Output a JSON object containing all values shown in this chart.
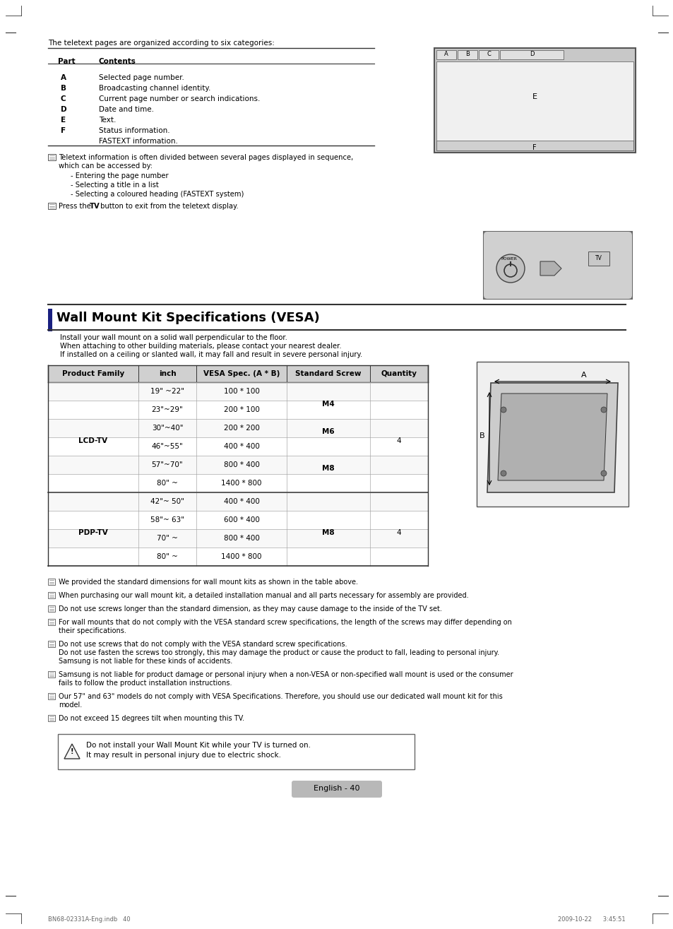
{
  "bg_color": "#ffffff",
  "top_intro_text": "The teletext pages are organized according to six categories:",
  "table1_rows": [
    [
      "A",
      "Selected page number."
    ],
    [
      "B",
      "Broadcasting channel identity."
    ],
    [
      "C",
      "Current page number or search indications."
    ],
    [
      "D",
      "Date and time."
    ],
    [
      "E",
      "Text."
    ],
    [
      "F",
      "Status information."
    ],
    [
      "",
      "FASTEXT information."
    ]
  ],
  "note1_line1": "Teletext information is often divided between several pages displayed in sequence,",
  "note1_line2": "which can be accessed by:",
  "note1_bullets": [
    "Entering the page number",
    "Selecting a title in a list",
    "Selecting a coloured heading (FASTEXT system)"
  ],
  "section_title": "Wall Mount Kit Specifications (VESA)",
  "section_intro": [
    "Install your wall mount on a solid wall perpendicular to the floor.",
    "When attaching to other building materials, please contact your nearest dealer.",
    "If installed on a ceiling or slanted wall, it may fall and result in severe personal injury."
  ],
  "vesa_table_headers": [
    "Product Family",
    "inch",
    "VESA Spec. (A * B)",
    "Standard Screw",
    "Quantity"
  ],
  "vesa_rows": [
    [
      "19\" ~22\"",
      "100 * 100"
    ],
    [
      "23\"~29\"",
      "200 * 100"
    ],
    [
      "30\"~40\"",
      "200 * 200"
    ],
    [
      "46\"~55\"",
      "400 * 400"
    ],
    [
      "57\"~70\"",
      "800 * 400"
    ],
    [
      "80\" ~",
      "1400 * 800"
    ],
    [
      "42\"~ 50\"",
      "400 * 400"
    ],
    [
      "58\"~ 63\"",
      "600 * 400"
    ],
    [
      "70\" ~",
      "800 * 400"
    ],
    [
      "80\" ~",
      "1400 * 800"
    ]
  ],
  "bottom_notes": [
    [
      "We provided the standard dimensions for wall mount kits as shown in the table above."
    ],
    [
      "When purchasing our wall mount kit, a detailed installation manual and all parts necessary for assembly are provided."
    ],
    [
      "Do not use screws longer than the standard dimension, as they may cause damage to the inside of the TV set."
    ],
    [
      "For wall mounts that do not comply with the VESA standard screw specifications, the length of the screws may differ depending on",
      "their specifications."
    ],
    [
      "Do not use screws that do not comply with the VESA standard screw specifications.",
      "Do not use fasten the screws too strongly, this may damage the product or cause the product to fall, leading to personal injury.",
      "Samsung is not liable for these kinds of accidents."
    ],
    [
      "Samsung is not liable for product damage or personal injury when a non-VESA or non-specified wall mount is used or the consumer",
      "fails to follow the product installation instructions."
    ],
    [
      "Our 57\" and 63\" models do not comply with VESA Specifications. Therefore, you should use our dedicated wall mount kit for this",
      "model."
    ],
    [
      "Do not exceed 15 degrees tilt when mounting this TV."
    ]
  ],
  "warning_line1": "Do not install your Wall Mount Kit while your TV is turned on.",
  "warning_line2": "It may result in personal injury due to electric shock.",
  "page_number": "English - 40",
  "footer_left": "BN68-02331A-Eng.indb   40",
  "footer_right": "2009-10-22      3:45:51"
}
